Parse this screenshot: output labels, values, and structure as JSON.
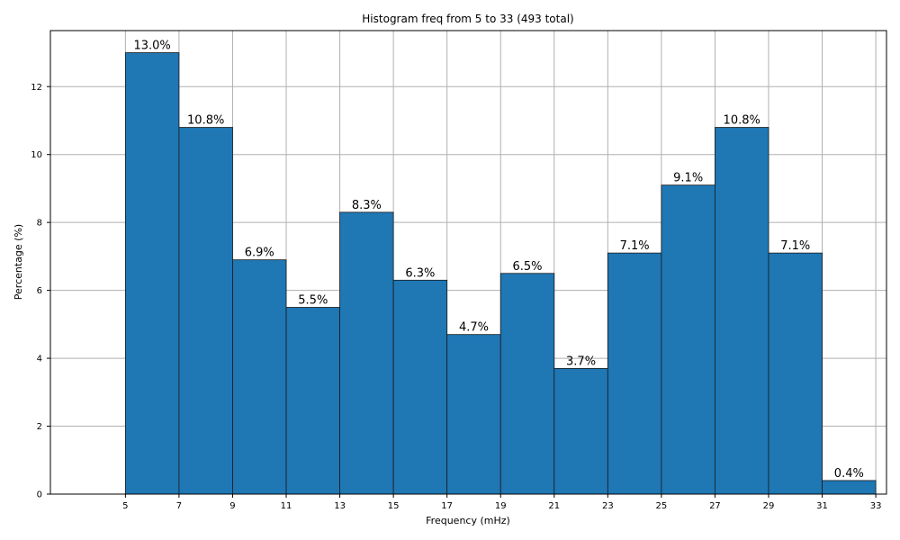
{
  "chart_data": {
    "type": "bar",
    "title": "Histogram freq from 5 to 33 (493 total)",
    "xlabel": "Frequency (mHz)",
    "ylabel": "Percentage (%)",
    "bin_edges": [
      5,
      7,
      9,
      11,
      13,
      15,
      17,
      19,
      21,
      23,
      25,
      27,
      29,
      31,
      33
    ],
    "values": [
      13.0,
      10.8,
      6.9,
      5.5,
      8.3,
      6.3,
      4.7,
      6.5,
      3.7,
      7.1,
      9.1,
      10.8,
      7.1,
      0.4
    ],
    "data_labels": [
      "13.0%",
      "10.8%",
      "6.9%",
      "5.5%",
      "8.3%",
      "6.3%",
      "4.7%",
      "6.5%",
      "3.7%",
      "7.1%",
      "9.1%",
      "10.8%",
      "7.1%",
      "0.4%"
    ],
    "xticks": [
      5,
      7,
      9,
      11,
      13,
      15,
      17,
      19,
      21,
      23,
      25,
      27,
      29,
      31,
      33
    ],
    "yticks": [
      0,
      2,
      4,
      6,
      8,
      10,
      12
    ],
    "xlim": [
      2.2,
      33.4
    ],
    "ylim": [
      0,
      13.65
    ],
    "grid": true,
    "bar_color": "#1f77b4"
  }
}
